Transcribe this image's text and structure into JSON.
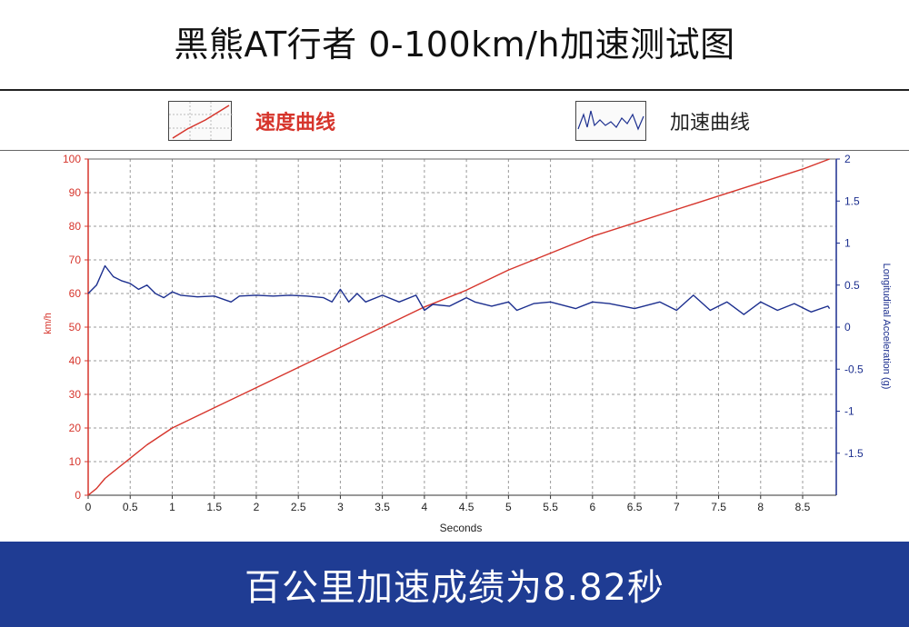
{
  "title": "黑熊AT行者 0-100km/h加速测试图",
  "legend": {
    "speed": {
      "label": "速度曲线",
      "color": "#d6352c"
    },
    "accel": {
      "label": "加速曲线",
      "color": "#1c2f8f"
    }
  },
  "footer": {
    "text": "百公里加速成绩为8.82秒"
  },
  "chart_data": {
    "type": "line",
    "xlabel": "Seconds",
    "ylabel_left": "km/h",
    "ylabel_right": "Longitudinal Acceleration (g)",
    "xlim": [
      0,
      8.9
    ],
    "ylim_left": [
      0,
      100
    ],
    "ylim_right": [
      -2,
      2
    ],
    "x_ticks": [
      "0",
      "0.5",
      "1",
      "1.5",
      "2",
      "2.5",
      "3",
      "3.5",
      "4",
      "4.5",
      "5",
      "5.5",
      "6",
      "6.5",
      "7",
      "7.5",
      "8",
      "8.5"
    ],
    "y_left_ticks": [
      "0",
      "10",
      "20",
      "30",
      "40",
      "50",
      "60",
      "70",
      "80",
      "90",
      "100"
    ],
    "y_right_ticks": [
      "-1.5",
      "-1",
      "-0.5",
      "0",
      "0.5",
      "1",
      "1.5",
      "2"
    ],
    "grid": true,
    "series": [
      {
        "axis": "left",
        "color": "#d6352c",
        "x": [
          0,
          0.1,
          0.2,
          0.3,
          0.5,
          0.7,
          1.0,
          1.5,
          2.0,
          2.5,
          3.0,
          3.5,
          4.0,
          4.5,
          5.0,
          5.5,
          6.0,
          6.5,
          7.0,
          7.5,
          8.0,
          8.5,
          8.82
        ],
        "y": [
          0,
          2,
          5,
          7,
          11,
          15,
          20,
          26,
          32,
          38,
          44,
          50,
          56,
          61,
          67,
          72,
          77,
          81,
          85,
          89,
          93,
          97,
          100
        ]
      },
      {
        "axis": "right",
        "color": "#1c2f8f",
        "x": [
          0,
          0.1,
          0.2,
          0.3,
          0.4,
          0.5,
          0.6,
          0.7,
          0.8,
          0.9,
          1.0,
          1.1,
          1.3,
          1.5,
          1.7,
          1.8,
          2.0,
          2.2,
          2.4,
          2.6,
          2.8,
          2.9,
          3.0,
          3.1,
          3.2,
          3.3,
          3.5,
          3.7,
          3.9,
          4.0,
          4.1,
          4.3,
          4.5,
          4.6,
          4.8,
          5.0,
          5.1,
          5.3,
          5.5,
          5.8,
          6.0,
          6.2,
          6.5,
          6.8,
          7.0,
          7.2,
          7.4,
          7.6,
          7.8,
          8.0,
          8.2,
          8.4,
          8.6,
          8.8,
          8.82
        ],
        "y": [
          0.4,
          0.5,
          0.73,
          0.6,
          0.55,
          0.52,
          0.45,
          0.5,
          0.4,
          0.35,
          0.42,
          0.38,
          0.36,
          0.37,
          0.3,
          0.37,
          0.38,
          0.37,
          0.38,
          0.37,
          0.35,
          0.3,
          0.45,
          0.3,
          0.4,
          0.3,
          0.38,
          0.3,
          0.38,
          0.2,
          0.27,
          0.25,
          0.35,
          0.3,
          0.25,
          0.3,
          0.2,
          0.28,
          0.3,
          0.22,
          0.3,
          0.28,
          0.22,
          0.3,
          0.2,
          0.38,
          0.2,
          0.3,
          0.15,
          0.3,
          0.2,
          0.28,
          0.18,
          0.25,
          0.22
        ]
      }
    ]
  }
}
